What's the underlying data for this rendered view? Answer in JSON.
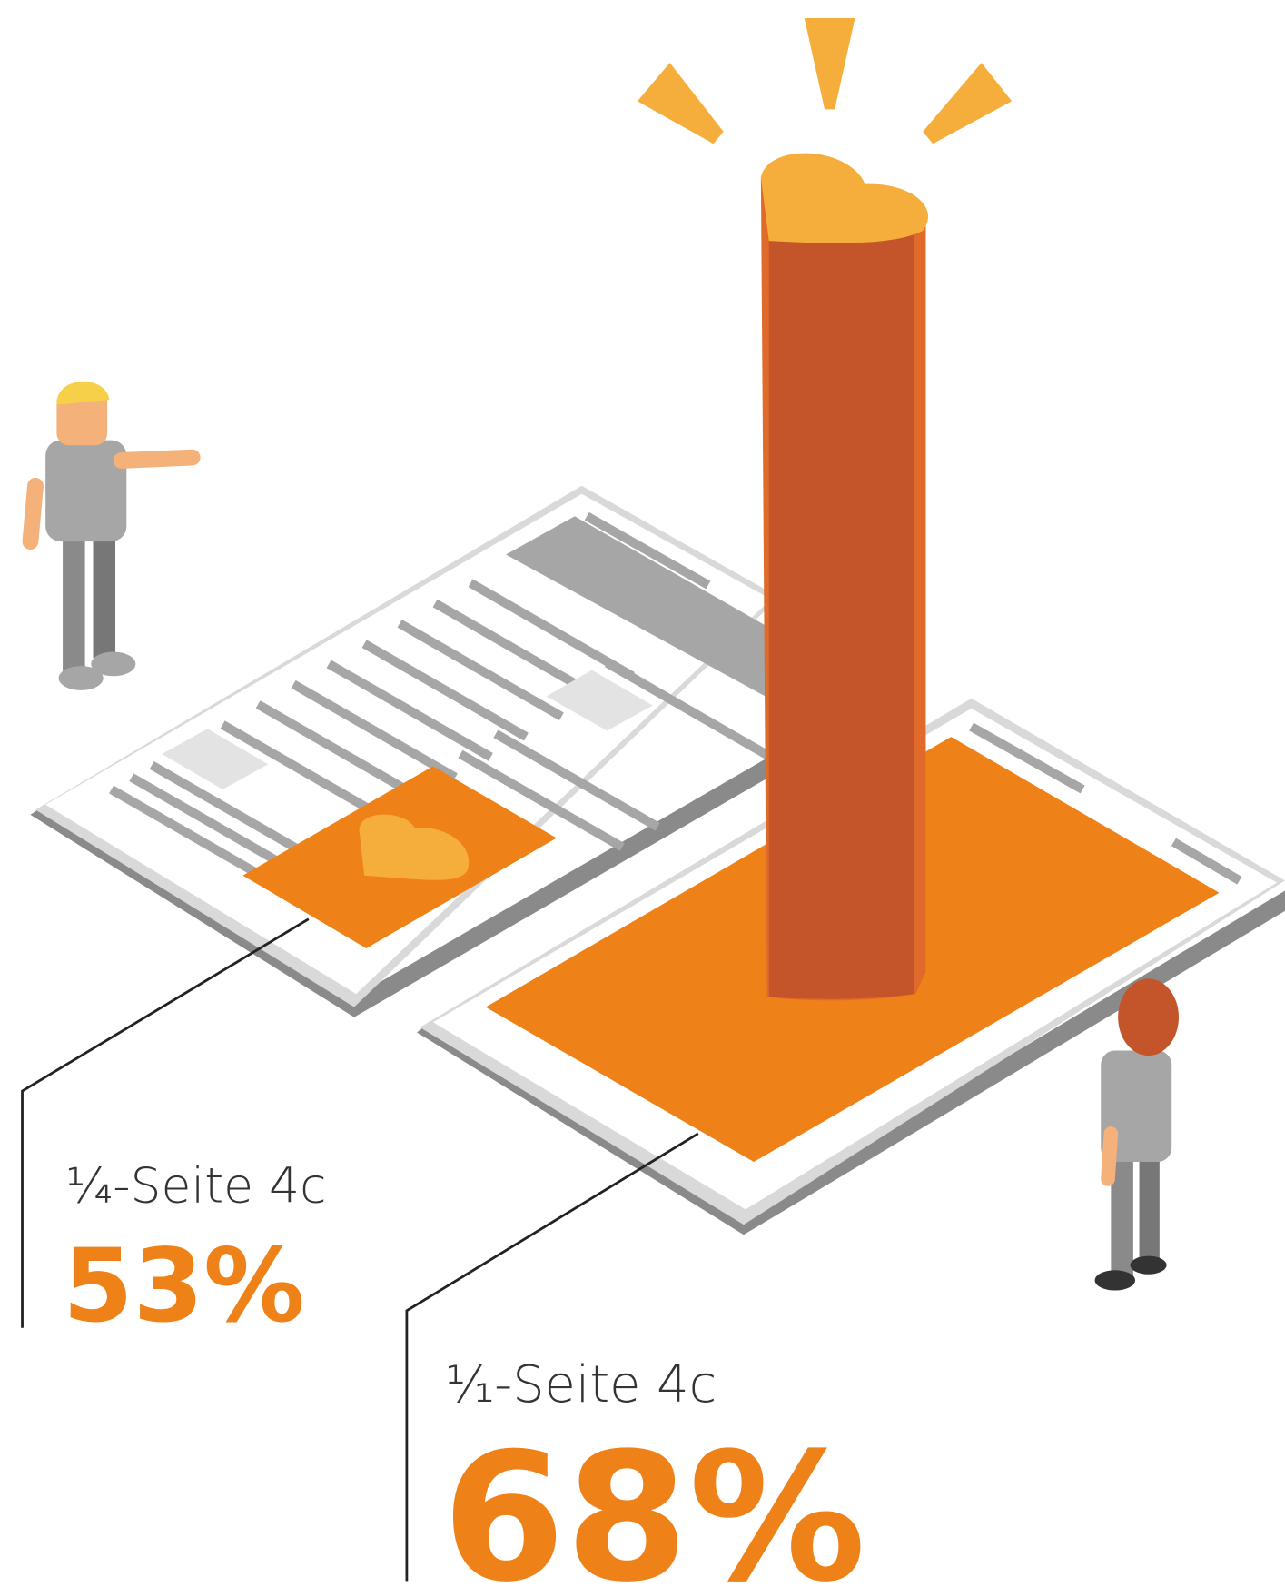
{
  "items": [
    {
      "label": "¹⁄₄-Seite 4c",
      "value": "53%"
    },
    {
      "label": "¹⁄₁-Seite 4c",
      "value": "68%"
    }
  ]
}
